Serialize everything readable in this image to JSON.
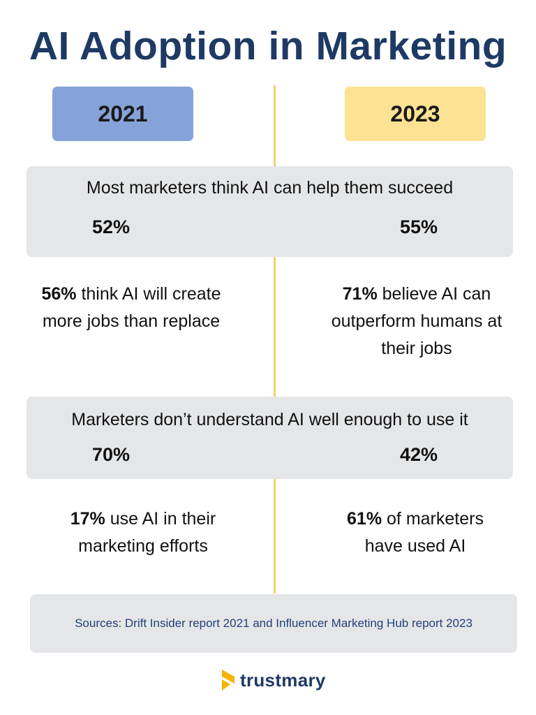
{
  "title": "AI Adoption in Marketing",
  "years": {
    "left": "2021",
    "right": "2023"
  },
  "band1": {
    "text": "Most marketers think AI can help them succeed",
    "left_value": "52%",
    "right_value": "55%"
  },
  "facts1": {
    "left": {
      "bold": "56%",
      "rest": " think AI will create more jobs than replace"
    },
    "right": {
      "bold": "71%",
      "rest": " believe AI can outperform humans at their jobs"
    }
  },
  "band2": {
    "text": "Marketers don’t understand AI well enough to use it",
    "left_value": "70%",
    "right_value": "42%"
  },
  "facts2": {
    "left": {
      "bold": "17%",
      "rest": " use AI in their marketing efforts"
    },
    "right": {
      "bold": "61%",
      "rest": " of marketers have used AI"
    }
  },
  "sources": "Sources: Drift Insider report 2021 and Influencer Marketing Hub report 2023",
  "logo": {
    "text": "trustmary",
    "icon": "trustmary-logo-icon"
  },
  "colors": {
    "title": "#1e3a64",
    "year_2021": "#86a3d9",
    "year_2023": "#fce293",
    "divider": "#f2d36b",
    "band": "#e5e6e8",
    "sources_text": "#22417a",
    "logo_mark": "#f4b400"
  }
}
